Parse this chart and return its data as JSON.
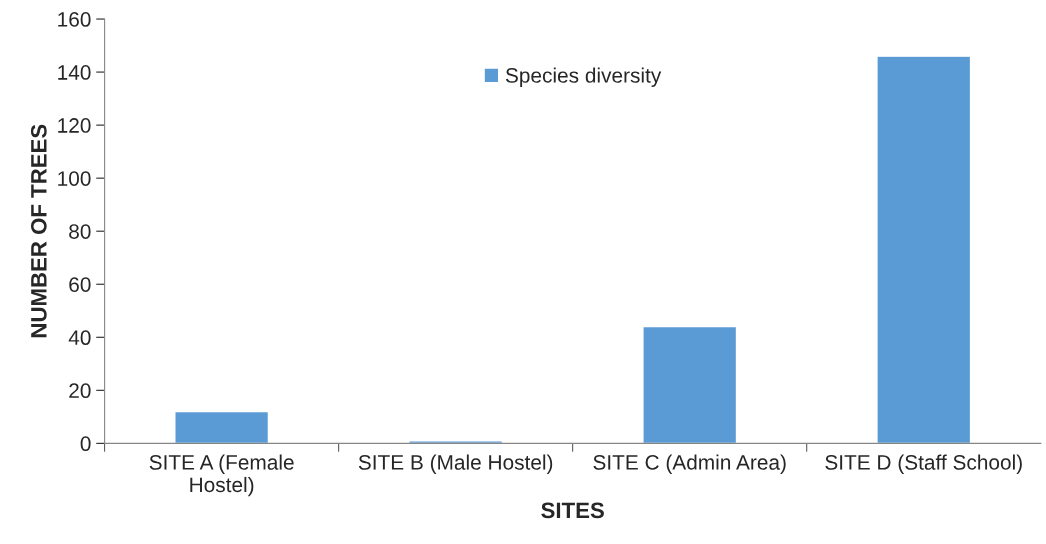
{
  "chart_data": {
    "type": "bar",
    "xlabel": "SITES",
    "ylabel": "NUMBER OF TREES",
    "categories": [
      "SITE A (Female\nHostel)",
      "SITE B (Male Hostel)",
      "SITE C (Admin Area)",
      "SITE D (Staff School)"
    ],
    "series": [
      {
        "name": "Species diversity",
        "color": "#5b9bd5",
        "values": [
          12,
          1,
          44,
          146
        ]
      }
    ],
    "ylim": [
      0,
      160
    ],
    "yticks": [
      0,
      20,
      40,
      60,
      80,
      100,
      120,
      140,
      160
    ],
    "grid": false,
    "legend": "top"
  }
}
